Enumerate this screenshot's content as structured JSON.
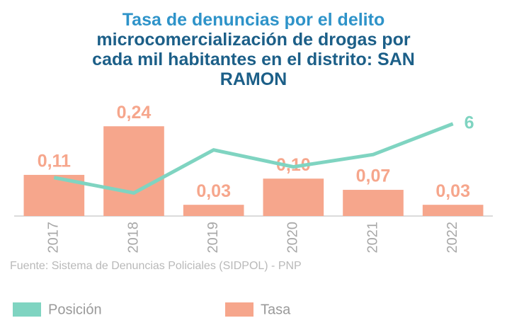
{
  "chart_data": {
    "type": "bar",
    "title": [
      "Tasa de denuncias por el delito",
      "microcomercialización de drogas por",
      "cada mil habitantes en el distrito: SAN",
      "RAMON"
    ],
    "categories": [
      "2017",
      "2018",
      "2019",
      "2020",
      "2021",
      "2022"
    ],
    "series": [
      {
        "name": "Posición",
        "type": "line",
        "axis": "y2",
        "color": "#7fd4c1",
        "values": [
          2.5,
          1.5,
          4.3,
          3.2,
          4.0,
          6
        ],
        "value_labels": [
          null,
          null,
          null,
          null,
          null,
          "6"
        ]
      },
      {
        "name": "Tasa",
        "type": "bar",
        "color": "#f6a68c",
        "values": [
          0.11,
          0.24,
          0.03,
          0.1,
          0.07,
          0.03
        ],
        "value_labels": [
          "0,11",
          "0,24",
          "0,03",
          "0,10",
          "0,07",
          "0,03"
        ]
      }
    ],
    "ylim": [
      0,
      0.25
    ],
    "y2lim": [
      0,
      7
    ],
    "source": "Fuente: Sistema de Denuncias Policiales (SIDPOL) - PNP"
  }
}
